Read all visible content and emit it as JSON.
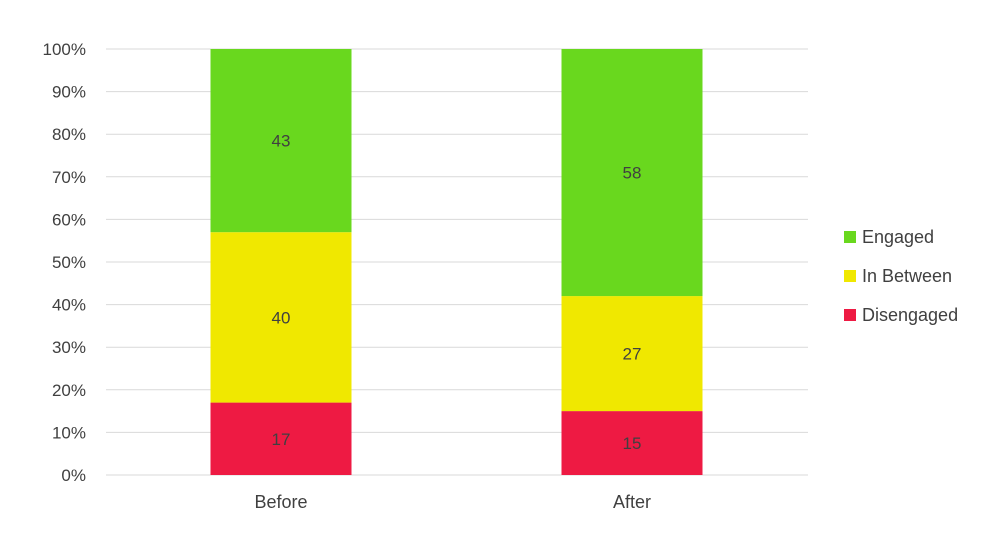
{
  "chart_data": {
    "type": "bar",
    "stacked": true,
    "percent_stacked": true,
    "categories": [
      "Before",
      "After"
    ],
    "series": [
      {
        "name": "Disengaged",
        "values": [
          17,
          15
        ],
        "color": "#ee1a43"
      },
      {
        "name": "In Between",
        "values": [
          40,
          27
        ],
        "color": "#f0e800"
      },
      {
        "name": "Engaged",
        "values": [
          43,
          58
        ],
        "color": "#69d81e"
      }
    ],
    "ylim": [
      0,
      100
    ],
    "yticks": [
      "0%",
      "10%",
      "20%",
      "30%",
      "40%",
      "50%",
      "60%",
      "70%",
      "80%",
      "90%",
      "100%"
    ],
    "grid": true,
    "legend_position": "right",
    "legend_order": [
      "Engaged",
      "In Between",
      "Disengaged"
    ]
  }
}
